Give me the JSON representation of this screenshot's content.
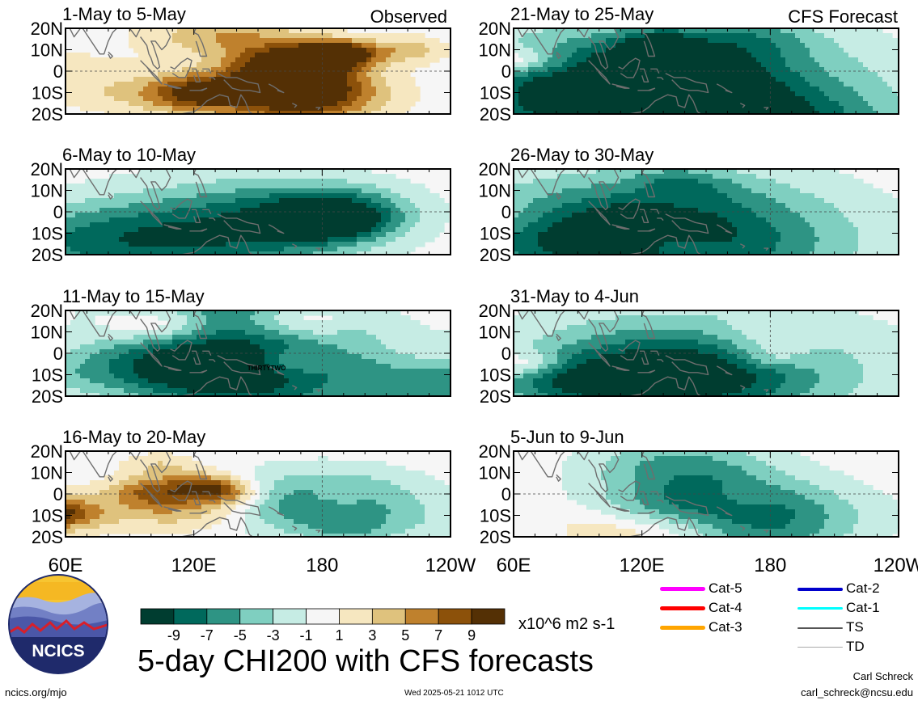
{
  "figure": {
    "title": "5-day CHI200 with CFS forecasts",
    "observed_label": "Observed",
    "forecast_label": "CFS Forecast",
    "x_axis_ticks": [
      "60E",
      "120E",
      "180",
      "120W"
    ],
    "y_axis_ticks": [
      "20N",
      "10N",
      "0",
      "10S",
      "20S"
    ],
    "colorbar": {
      "unit": "x10^6 m2 s-1",
      "tick_labels": [
        "-9",
        "-7",
        "-5",
        "-3",
        "-1",
        "1",
        "3",
        "5",
        "7",
        "9"
      ],
      "colors": [
        "#003d30",
        "#00695c",
        "#2e9484",
        "#7fcfc0",
        "#c6ece4",
        "#f6f6f6",
        "#f6e7c0",
        "#dfc27d",
        "#bf812d",
        "#8c510a",
        "#543005"
      ]
    },
    "storm_legend": [
      {
        "label": "Cat-5",
        "color": "#ff00ff"
      },
      {
        "label": "Cat-4",
        "color": "#ff0000"
      },
      {
        "label": "Cat-3",
        "color": "#ffa500"
      },
      {
        "label": "Cat-2",
        "color": "#0000cc"
      },
      {
        "label": "Cat-1",
        "color": "#00ffff"
      },
      {
        "label": "TS",
        "color": "#555555"
      },
      {
        "label": "TD",
        "color": "#aaaaaa"
      }
    ],
    "storm_annotation": "THIRTYTWO",
    "logo_text": "NCICS",
    "footer": {
      "left": "ncics.org/mjo",
      "middle": "Wed 2025-05-21 1012 UTC",
      "right_name": "Carl Schreck",
      "right_email": "carl_schreck@ncsu.edu"
    }
  },
  "chart_data": [
    {
      "type": "heatmap",
      "title": "1-May to 5-May",
      "source": "Observed",
      "blobs": [
        [
          5,
          16,
          -5,
          4
        ],
        [
          7,
          -12,
          6,
          4
        ],
        [
          10,
          -8,
          4,
          4
        ],
        [
          10,
          3,
          4,
          3
        ],
        [
          -2,
          4,
          -5,
          3
        ],
        [
          9,
          -10,
          -9,
          3
        ],
        [
          2,
          -11,
          -23,
          3
        ],
        [
          -4,
          -5,
          0,
          3
        ],
        [
          2,
          0,
          -30,
          3
        ],
        [
          -3,
          -15,
          -2,
          2
        ],
        [
          13,
          8,
          12,
          2
        ],
        [
          4,
          10,
          23,
          2
        ]
      ]
    },
    {
      "type": "heatmap",
      "title": "6-May to 10-May",
      "source": "Observed",
      "blobs": [
        [
          -6,
          -12,
          -2,
          6
        ],
        [
          -7,
          -14,
          -25,
          6
        ],
        [
          -3,
          3,
          -3,
          6
        ],
        [
          -1,
          -6,
          10,
          4
        ],
        [
          0,
          20,
          -7,
          3
        ],
        [
          -5,
          2,
          12,
          4
        ],
        [
          -7,
          -4,
          12,
          3
        ]
      ]
    },
    {
      "type": "heatmap",
      "title": "11-May to 15-May",
      "source": "Observed",
      "blobs": [
        [
          6,
          13,
          -15,
          3
        ],
        [
          5,
          15,
          6,
          3
        ],
        [
          -8,
          -13,
          5,
          6
        ],
        [
          -8,
          -13,
          36,
          6
        ],
        [
          -7,
          20,
          -4,
          6
        ],
        [
          -6,
          -9,
          -12,
          5
        ],
        [
          -4,
          0,
          -12,
          5
        ],
        [
          3,
          -4,
          30,
          4
        ],
        [
          -2,
          -9,
          -30,
          3
        ],
        [
          0,
          -20,
          -30,
          3
        ],
        [
          2,
          -15,
          10,
          3
        ],
        [
          -1,
          7,
          5,
          3
        ],
        [
          4,
          -4,
          5,
          2
        ],
        [
          -1,
          11,
          16,
          2
        ]
      ]
    },
    {
      "type": "heatmap",
      "title": "16-May to 20-May",
      "source": "Observed",
      "blobs": [
        [
          -8,
          -5,
          10,
          5
        ],
        [
          -2,
          -20,
          -12,
          4
        ],
        [
          -1,
          -14,
          28,
          3
        ],
        [
          5,
          0,
          -5,
          2
        ],
        [
          4,
          -3,
          -15,
          3
        ],
        [
          6,
          -10,
          -32,
          3
        ],
        [
          6,
          -8,
          -33,
          2
        ],
        [
          6,
          4,
          -8,
          2
        ],
        [
          3,
          -2,
          12,
          2
        ],
        [
          4,
          -12,
          -10,
          4
        ],
        [
          3,
          13,
          -15,
          2
        ],
        [
          -2,
          -17,
          15,
          2
        ],
        [
          4,
          2,
          -17,
          2
        ]
      ]
    },
    {
      "type": "heatmap",
      "title": "21-May to 25-May",
      "source": "CFS Forecast",
      "blobs": [
        [
          -5,
          -8,
          0,
          9
        ],
        [
          -6,
          -5,
          -12,
          9
        ],
        [
          -5,
          -15,
          -15,
          6
        ],
        [
          -5,
          -30,
          5,
          6
        ],
        [
          -8,
          -10,
          -10,
          4
        ],
        [
          -3,
          15,
          8,
          3
        ],
        [
          -4,
          12,
          -8,
          2
        ],
        [
          -2,
          15,
          -6,
          2
        ],
        [
          -2,
          5,
          -2,
          3
        ],
        [
          3,
          0,
          -20,
          2
        ],
        [
          5,
          5,
          -30,
          2
        ],
        [
          -3,
          -10,
          -11,
          5
        ],
        [
          -3,
          -28,
          18,
          6
        ]
      ]
    },
    {
      "type": "heatmap",
      "title": "26-May to 30-May",
      "source": "CFS Forecast",
      "blobs": [
        [
          -8,
          -15,
          -8,
          9
        ],
        [
          -5,
          -10,
          -10,
          9
        ],
        [
          -5,
          -15,
          -25,
          4
        ],
        [
          -6,
          -8,
          -8,
          3
        ],
        [
          -2,
          15,
          -5,
          2
        ],
        [
          3,
          -15,
          -5,
          4
        ],
        [
          4,
          -18,
          -25,
          4
        ],
        [
          2,
          -5,
          -30,
          3
        ],
        [
          -2,
          10,
          -2,
          3
        ],
        [
          2,
          0,
          -5,
          3
        ],
        [
          4,
          -15,
          -5,
          2
        ]
      ]
    },
    {
      "type": "heatmap",
      "title": "31-May to 4-Jun",
      "source": "CFS Forecast",
      "blobs": [
        [
          -5,
          -8,
          -2,
          9
        ],
        [
          -4,
          -8,
          -3,
          8
        ],
        [
          -4,
          -12,
          -10,
          5
        ],
        [
          -2,
          -14,
          -12,
          2
        ],
        [
          -1,
          -12,
          5,
          3
        ],
        [
          3,
          -2,
          10,
          2
        ],
        [
          -2,
          -15,
          -22,
          4
        ],
        [
          -2,
          -10,
          -25,
          3
        ],
        [
          3,
          8,
          10,
          3
        ],
        [
          5,
          -5,
          -28,
          2
        ]
      ]
    },
    {
      "type": "heatmap",
      "title": "5-Jun to 9-Jun",
      "source": "CFS Forecast",
      "blobs": [
        [
          -6,
          -10,
          10,
          5
        ],
        [
          -5,
          -30,
          5,
          5
        ],
        [
          -4,
          0,
          -2,
          5
        ],
        [
          -4,
          -8,
          -4,
          4
        ],
        [
          -2,
          15,
          2,
          4
        ],
        [
          -3,
          15,
          -8,
          4
        ],
        [
          6,
          -15,
          -5,
          4
        ],
        [
          2,
          -15,
          -15,
          3
        ],
        [
          2,
          -30,
          18,
          2
        ],
        [
          -2,
          -12,
          -10,
          3
        ],
        [
          2,
          -2,
          5,
          2
        ]
      ]
    }
  ]
}
